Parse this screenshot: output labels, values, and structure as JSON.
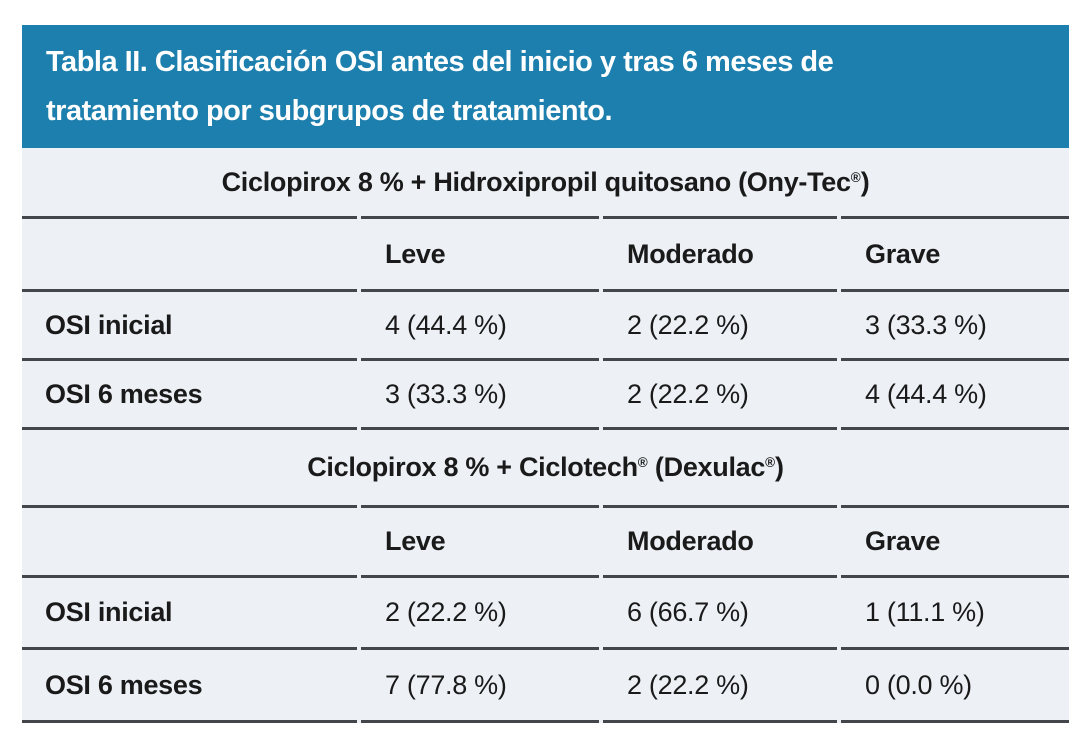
{
  "table": {
    "title": "Tabla II. Clasificación OSI antes del inicio y tras 6 meses de tratamiento por subgrupos de tratamiento.",
    "sections": [
      {
        "title": "Ciclopirox 8 % + Hidroxipropil quitosano (Ony-Tec®)",
        "columns": [
          "Leve",
          "Moderado",
          "Grave"
        ],
        "rows": [
          {
            "label": "OSI inicial",
            "values": [
              "4 (44.4 %)",
              "2 (22.2 %)",
              "3 (33.3 %)"
            ]
          },
          {
            "label": "OSI 6 meses",
            "values": [
              "3 (33.3 %)",
              "2 (22.2 %)",
              "4 (44.4 %)"
            ]
          }
        ]
      },
      {
        "title": "Ciclopirox 8 % + Ciclotech® (Dexulac®)",
        "columns": [
          "Leve",
          "Moderado",
          "Grave"
        ],
        "rows": [
          {
            "label": "OSI inicial",
            "values": [
              "2 (22.2 %)",
              "6 (66.7 %)",
              "1 (11.1 %)"
            ]
          },
          {
            "label": "OSI 6 meses",
            "values": [
              "7 (77.8 %)",
              "2 (22.2 %)",
              "0 (0.0 %)"
            ]
          }
        ]
      }
    ]
  },
  "colors": {
    "title_bg": "#1d7fad",
    "title_text": "#ffffff",
    "body_bg": "#edf1f6",
    "divider": "#43474c",
    "text": "#1a1a1a",
    "page_bg": "#ffffff"
  }
}
